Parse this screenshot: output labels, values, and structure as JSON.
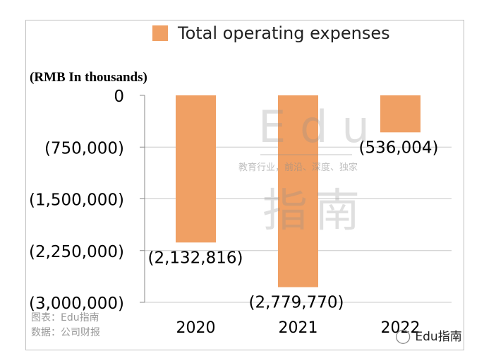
{
  "chart_data": {
    "type": "bar",
    "legend": [
      "Total operating expenses"
    ],
    "ylabel": "(RMB In thousands)",
    "categories": [
      "2020",
      "2021",
      "2022"
    ],
    "values": [
      -2132816,
      -2779770,
      -536004
    ],
    "data_labels": [
      "(2,132,816)",
      "(2,779,770)",
      "(536,004)"
    ],
    "yticks": [
      0,
      -750000,
      -1500000,
      -2250000,
      -3000000
    ],
    "ytick_labels": [
      "0",
      "(750,000)",
      "(1,500,000)",
      "(2,250,000)",
      "(3,000,000)"
    ],
    "ylim": [
      -3000000,
      0
    ],
    "grid": true,
    "legend_position": "top",
    "colors": {
      "bar": "#f0a064",
      "grid": "#c8c8c8"
    }
  },
  "source_lines": [
    "图表：Edu指南",
    "数据：公司财报"
  ],
  "watermark": {
    "title": "Edu",
    "subtitle": "教育行业，前沿、深度、独家",
    "name": "指南"
  },
  "brand": {
    "icon": "wechat-icon",
    "label": "Edu指南"
  }
}
